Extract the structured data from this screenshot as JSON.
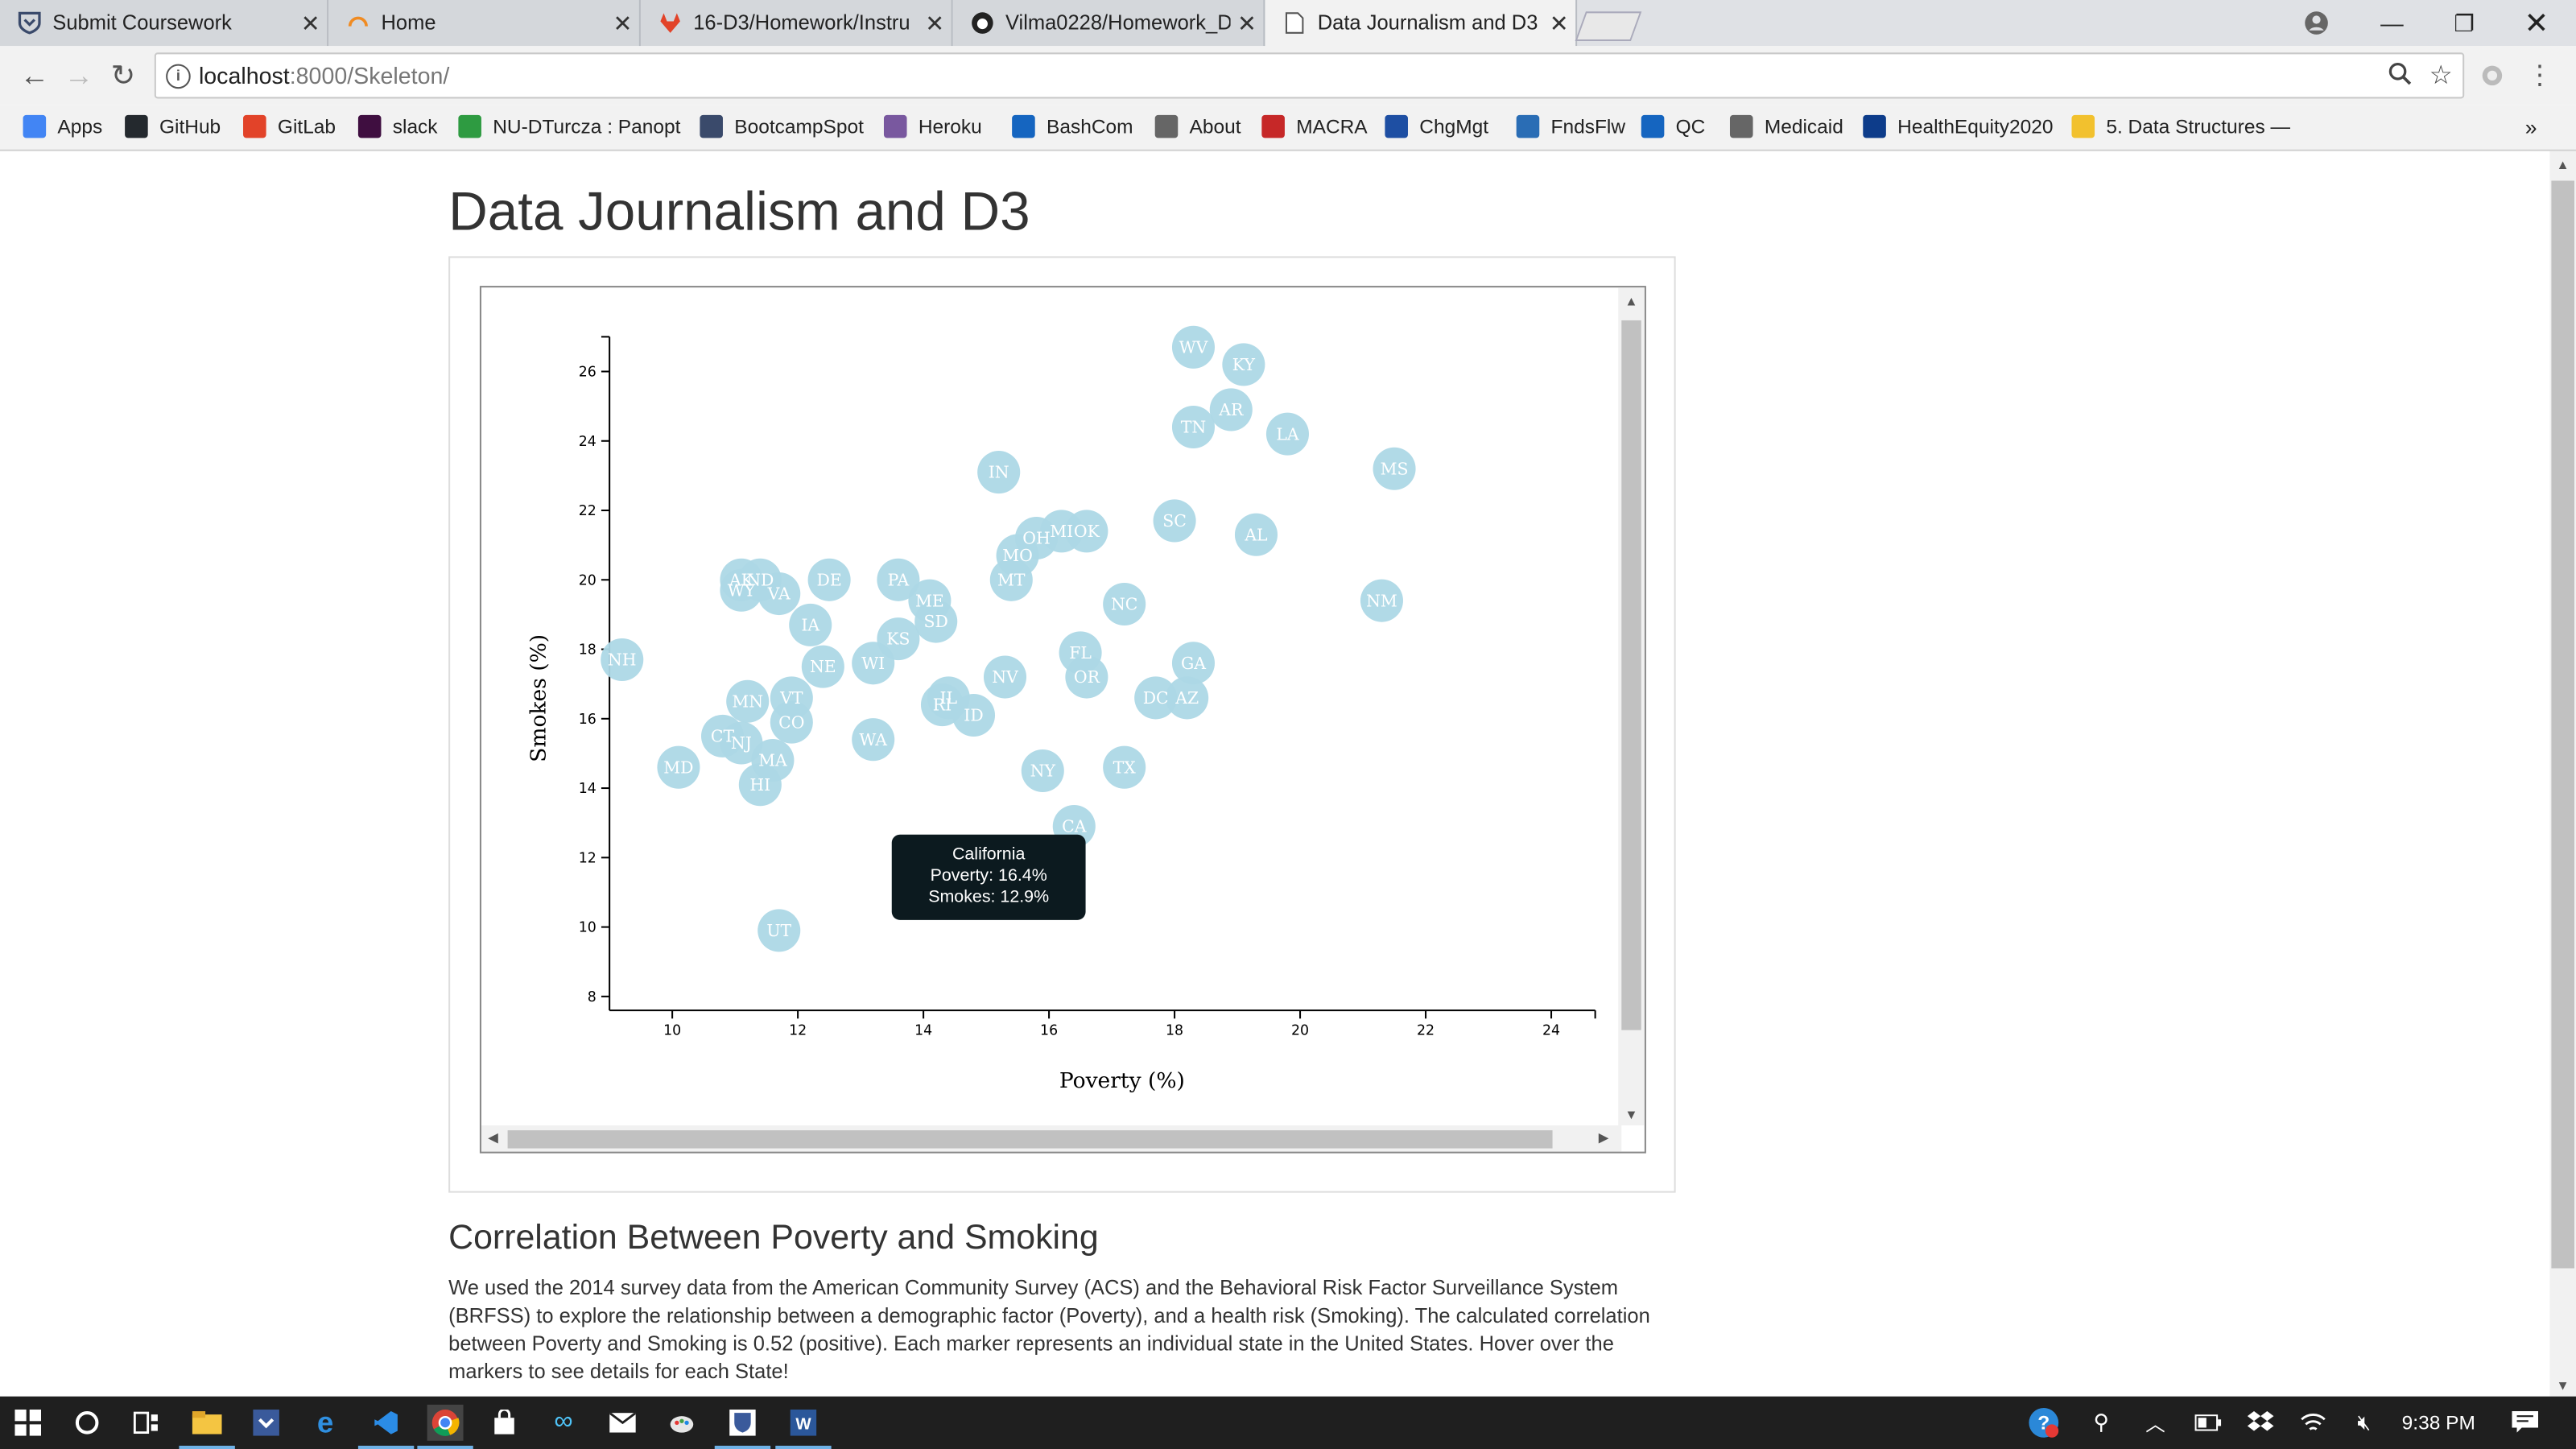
{
  "browser": {
    "tabs": [
      {
        "title": "Submit Coursework",
        "icon": "canvas-shield-icon",
        "active": false
      },
      {
        "title": "Home",
        "icon": "loading-spinner-icon",
        "active": false
      },
      {
        "title": "16-D3/Homework/Instru",
        "icon": "gitlab-fox-icon",
        "active": false
      },
      {
        "title": "Vilma0228/Homework_D",
        "icon": "github-octocat-icon",
        "active": false
      },
      {
        "title": "Data Journalism and D3",
        "icon": "document-icon",
        "active": true
      }
    ],
    "url_host": "localhost",
    "url_rest": ":8000/Skeleton/",
    "bookmarks": [
      {
        "label": "Apps",
        "icon": "apps-grid-icon",
        "color": "#4285f4"
      },
      {
        "label": "GitHub",
        "icon": "github-octocat-icon",
        "color": "#24292e"
      },
      {
        "label": "GitLab",
        "icon": "gitlab-fox-icon",
        "color": "#e24329"
      },
      {
        "label": "slack",
        "icon": "slack-hash-icon",
        "color": "#3f0e40"
      },
      {
        "label": "NU-DTurcza : Panopt",
        "icon": "panopto-icon",
        "color": "#2e9b41"
      },
      {
        "label": "BootcampSpot",
        "icon": "shield-icon",
        "color": "#3a4a6b"
      },
      {
        "label": "Heroku",
        "icon": "heroku-icon",
        "color": "#79589f"
      },
      {
        "label": "BashCom",
        "icon": "bashcom-v-icon",
        "color": "#1565c0"
      },
      {
        "label": "About",
        "icon": "document-icon",
        "color": "#666666"
      },
      {
        "label": "MACRA",
        "icon": "macra-icon",
        "color": "#c62828"
      },
      {
        "label": "ChgMgt",
        "icon": "sb-icon",
        "color": "#1e4fa3"
      },
      {
        "label": "FndsFlw",
        "icon": "dhg-icon",
        "color": "#2a6db5"
      },
      {
        "label": "QC",
        "icon": "qc-person-icon",
        "color": "#1565c0"
      },
      {
        "label": "Medicaid",
        "icon": "document-icon",
        "color": "#666666"
      },
      {
        "label": "HealthEquity2020",
        "icon": "healthequity-icon",
        "color": "#0d3c8a"
      },
      {
        "label": "5. Data Structures —",
        "icon": "python-icon",
        "color": "#f2c12e"
      }
    ],
    "bookmarks_overflow": "»"
  },
  "page": {
    "title": "Data Journalism and D3",
    "subtitle": "Correlation Between Poverty and Smoking",
    "body": "We used the 2014 survey data from the American Community Survey (ACS) and the Behavioral Risk Factor Surveillance System (BRFSS) to explore the relationship between a demographic factor (Poverty), and a health risk (Smoking). The calculated correlation between Poverty and Smoking is 0.52 (positive). Each marker represents an individual state in the United States. Hover over the markers to see details for each State!"
  },
  "chart_data": {
    "type": "scatter",
    "title": "",
    "xlabel": "Poverty (%)",
    "ylabel": "Smokes (%)",
    "xlim": [
      9,
      24.7
    ],
    "ylim": [
      7.6,
      27
    ],
    "xticks": [
      10,
      12,
      14,
      16,
      18,
      20,
      22,
      24
    ],
    "yticks": [
      8,
      10,
      12,
      14,
      16,
      18,
      20,
      22,
      24,
      26
    ],
    "marker_color": "#add8e6",
    "points": [
      {
        "abbr": "WV",
        "x": 18.3,
        "y": 26.7
      },
      {
        "abbr": "KY",
        "x": 19.1,
        "y": 26.2
      },
      {
        "abbr": "AR",
        "x": 18.9,
        "y": 24.9
      },
      {
        "abbr": "TN",
        "x": 18.3,
        "y": 24.4
      },
      {
        "abbr": "LA",
        "x": 19.8,
        "y": 24.2
      },
      {
        "abbr": "MS",
        "x": 21.5,
        "y": 23.2
      },
      {
        "abbr": "IN",
        "x": 15.2,
        "y": 23.1
      },
      {
        "abbr": "SC",
        "x": 18.0,
        "y": 21.7
      },
      {
        "abbr": "AL",
        "x": 19.3,
        "y": 21.3
      },
      {
        "abbr": "OH",
        "x": 15.8,
        "y": 21.2
      },
      {
        "abbr": "MI",
        "x": 16.2,
        "y": 21.4
      },
      {
        "abbr": "OK",
        "x": 16.6,
        "y": 21.4
      },
      {
        "abbr": "MO",
        "x": 15.5,
        "y": 20.7
      },
      {
        "abbr": "MT",
        "x": 15.4,
        "y": 20.0
      },
      {
        "abbr": "NM",
        "x": 21.3,
        "y": 19.4
      },
      {
        "abbr": "NC",
        "x": 17.2,
        "y": 19.3
      },
      {
        "abbr": "AK",
        "x": 11.1,
        "y": 20.0
      },
      {
        "abbr": "ND",
        "x": 11.4,
        "y": 20.0
      },
      {
        "abbr": "WY",
        "x": 11.1,
        "y": 19.7
      },
      {
        "abbr": "VA",
        "x": 11.7,
        "y": 19.6
      },
      {
        "abbr": "DE",
        "x": 12.5,
        "y": 20.0
      },
      {
        "abbr": "PA",
        "x": 13.6,
        "y": 20.0
      },
      {
        "abbr": "ME",
        "x": 14.1,
        "y": 19.4
      },
      {
        "abbr": "SD",
        "x": 14.2,
        "y": 18.8
      },
      {
        "abbr": "IA",
        "x": 12.2,
        "y": 18.7
      },
      {
        "abbr": "KS",
        "x": 13.6,
        "y": 18.3
      },
      {
        "abbr": "NH",
        "x": 9.2,
        "y": 17.7
      },
      {
        "abbr": "NE",
        "x": 12.4,
        "y": 17.5
      },
      {
        "abbr": "WI",
        "x": 13.2,
        "y": 17.6
      },
      {
        "abbr": "FL",
        "x": 16.5,
        "y": 17.9
      },
      {
        "abbr": "OR",
        "x": 16.6,
        "y": 17.2
      },
      {
        "abbr": "NV",
        "x": 15.3,
        "y": 17.2
      },
      {
        "abbr": "GA",
        "x": 18.3,
        "y": 17.6
      },
      {
        "abbr": "DC",
        "x": 17.7,
        "y": 16.6
      },
      {
        "abbr": "AZ",
        "x": 18.2,
        "y": 16.6
      },
      {
        "abbr": "MN",
        "x": 11.2,
        "y": 16.5
      },
      {
        "abbr": "VT",
        "x": 11.9,
        "y": 16.6
      },
      {
        "abbr": "IL",
        "x": 14.4,
        "y": 16.6
      },
      {
        "abbr": "RI",
        "x": 14.3,
        "y": 16.4
      },
      {
        "abbr": "ID",
        "x": 14.8,
        "y": 16.1
      },
      {
        "abbr": "CO",
        "x": 11.9,
        "y": 15.9
      },
      {
        "abbr": "CT",
        "x": 10.8,
        "y": 15.5
      },
      {
        "abbr": "NJ",
        "x": 11.1,
        "y": 15.3
      },
      {
        "abbr": "WA",
        "x": 13.2,
        "y": 15.4
      },
      {
        "abbr": "MA",
        "x": 11.6,
        "y": 14.8
      },
      {
        "abbr": "MD",
        "x": 10.1,
        "y": 14.6
      },
      {
        "abbr": "HI",
        "x": 11.4,
        "y": 14.1
      },
      {
        "abbr": "NY",
        "x": 15.9,
        "y": 14.5
      },
      {
        "abbr": "TX",
        "x": 17.2,
        "y": 14.6
      },
      {
        "abbr": "CA",
        "x": 16.4,
        "y": 12.9
      },
      {
        "abbr": "UT",
        "x": 11.7,
        "y": 9.9
      }
    ],
    "tooltip": {
      "state": "California",
      "poverty": "Poverty: 16.4%",
      "smokes": "Smokes: 12.9%"
    }
  },
  "taskbar": {
    "time": "9:38 PM"
  }
}
